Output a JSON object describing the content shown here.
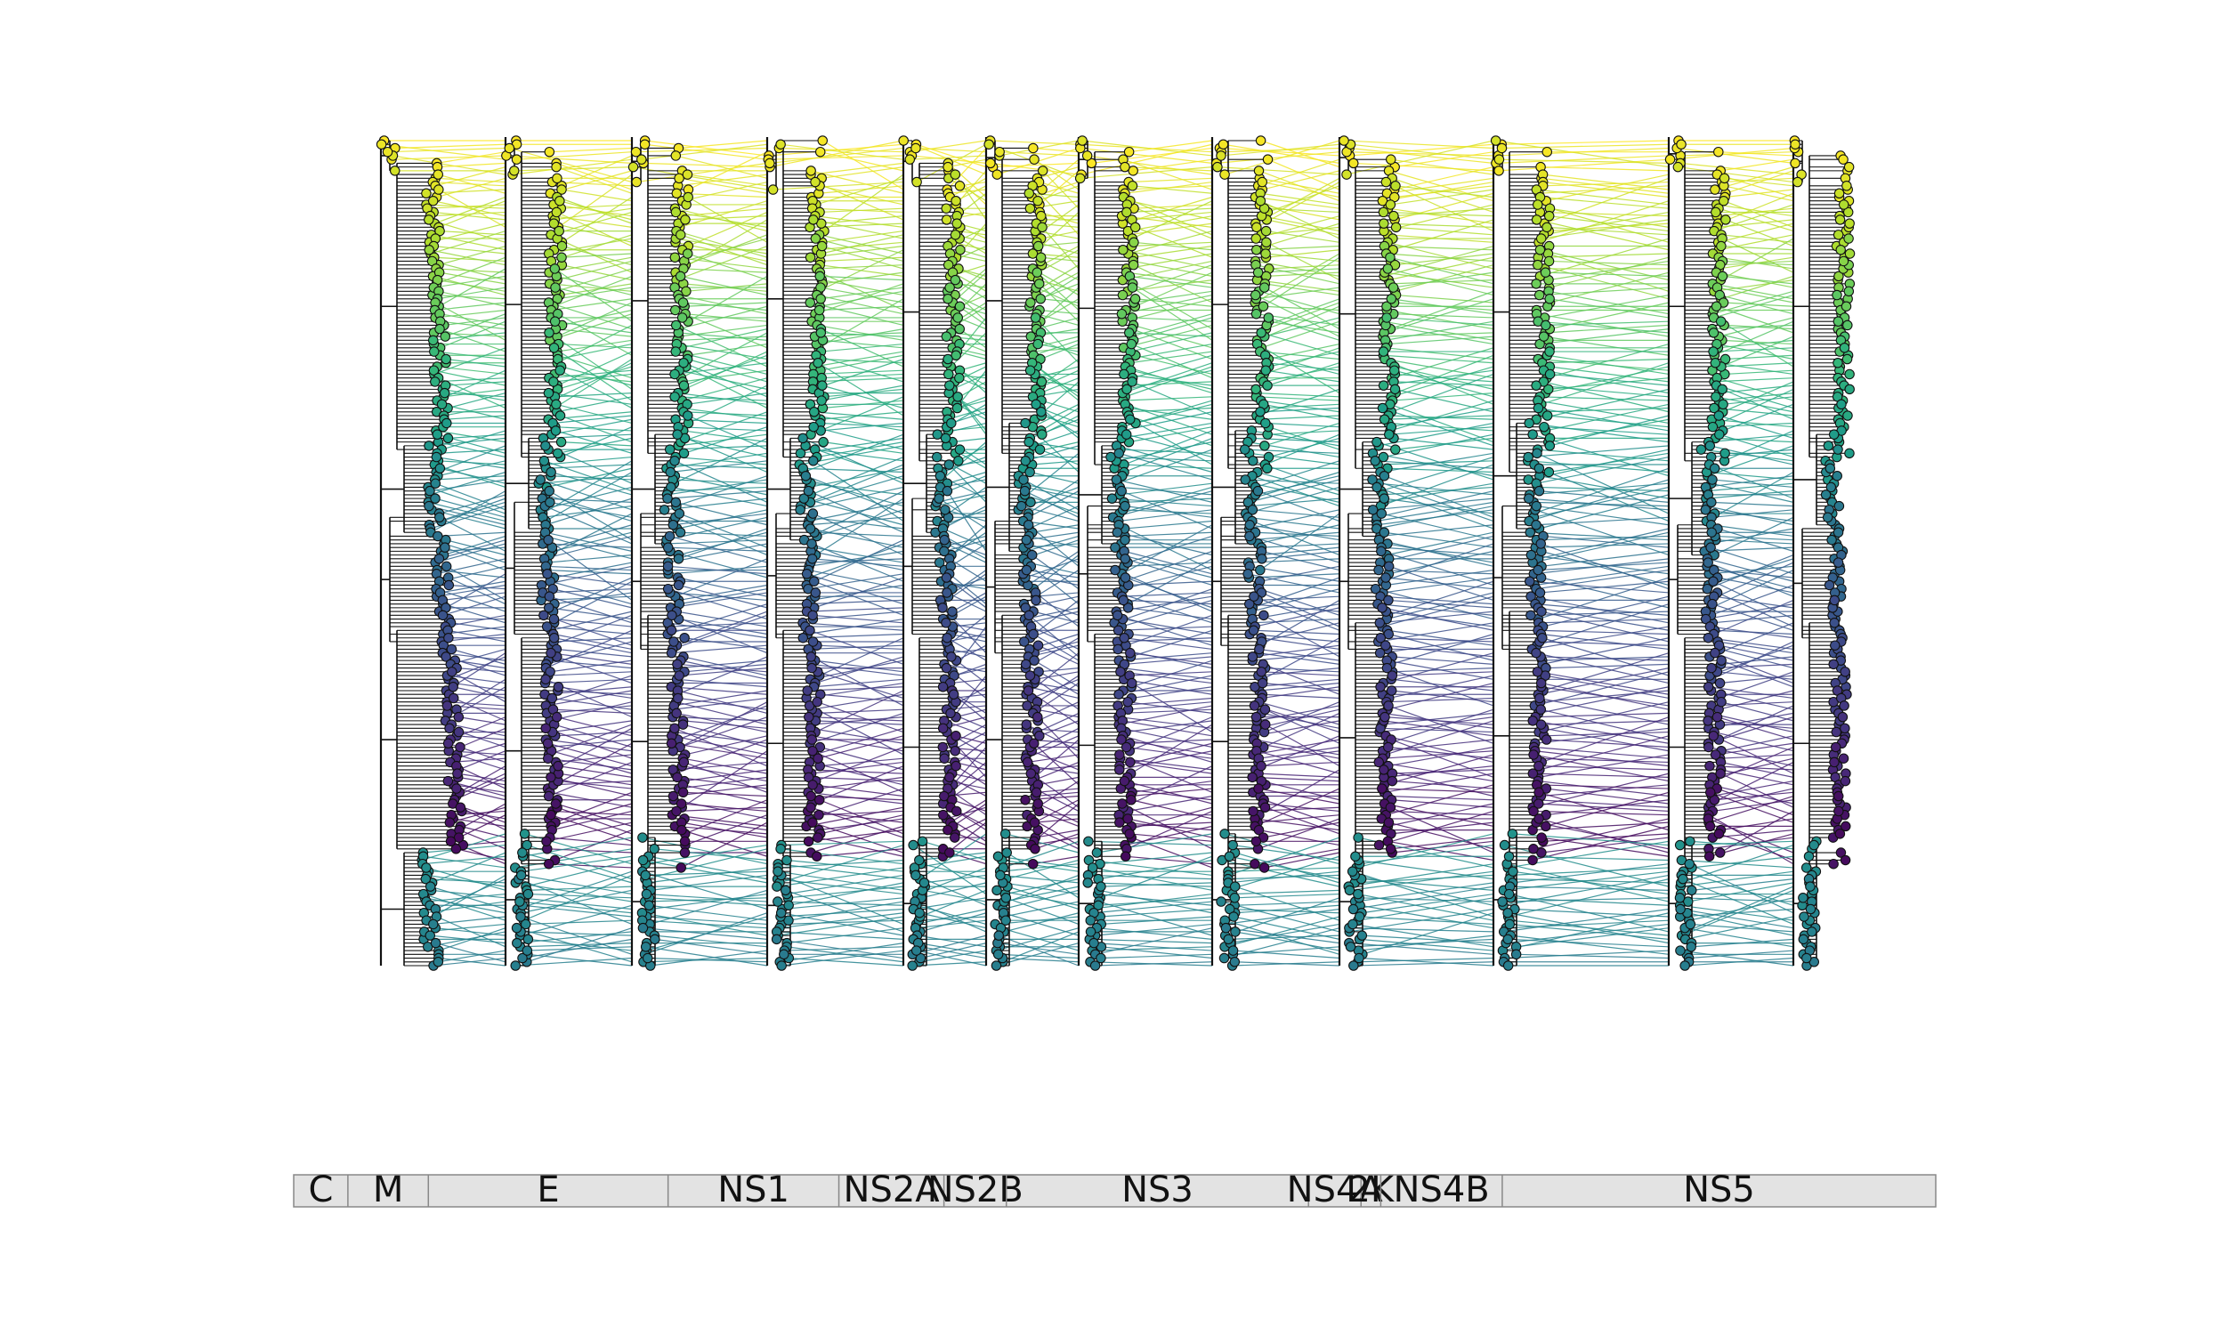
{
  "chart_data": {
    "type": "tanglegram",
    "title": "",
    "xlabel": "",
    "ylabel": "",
    "colormap": "viridis",
    "colormap_colors": [
      "#440154",
      "#482878",
      "#3e4a89",
      "#31688e",
      "#26828e",
      "#1f9e89",
      "#35b779",
      "#6ece58",
      "#b5de2b",
      "#fde725"
    ],
    "tree_count": 12,
    "leaf_count": 220,
    "genome_segments": [
      {
        "name": "C",
        "start": 0,
        "end": 3.3
      },
      {
        "name": "M",
        "start": 3.3,
        "end": 8.2
      },
      {
        "name": "E",
        "start": 8.2,
        "end": 22.8
      },
      {
        "name": "NS1",
        "start": 22.8,
        "end": 33.2
      },
      {
        "name": "NS2A",
        "start": 33.2,
        "end": 39.6
      },
      {
        "name": "NS2B",
        "start": 39.6,
        "end": 43.4
      },
      {
        "name": "NS3",
        "start": 43.4,
        "end": 61.8
      },
      {
        "name": "NS4A",
        "start": 61.8,
        "end": 65.0
      },
      {
        "name": "2K",
        "start": 65.0,
        "end": 66.2
      },
      {
        "name": "NS4B",
        "start": 66.2,
        "end": 73.6
      },
      {
        "name": "NS5",
        "start": 73.6,
        "end": 100
      }
    ]
  }
}
